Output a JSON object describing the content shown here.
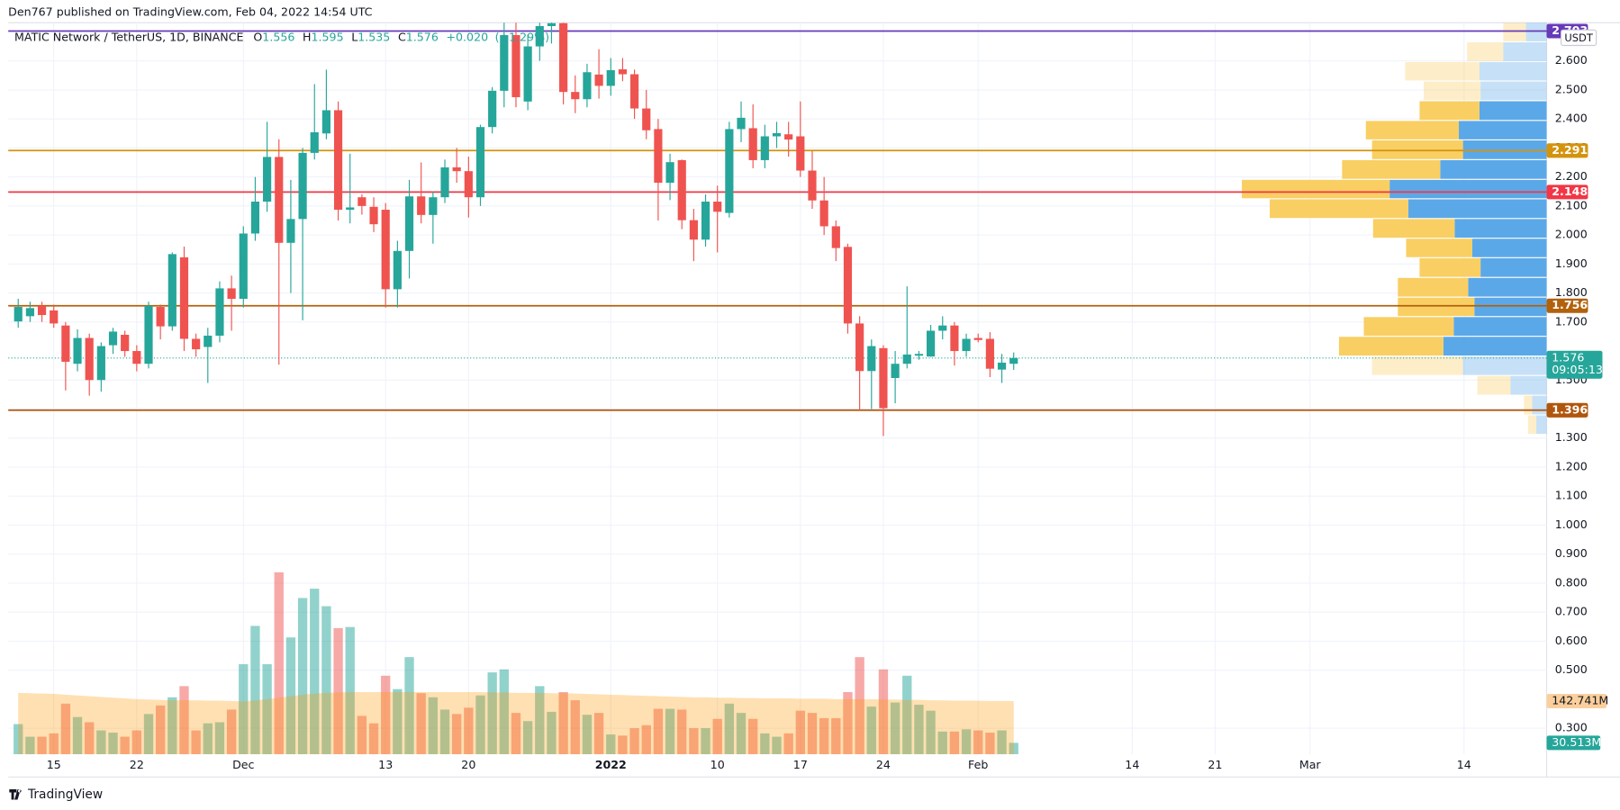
{
  "header": "Den767 published on TradingView.com, Feb 04, 2022 14:54 UTC",
  "footer": "TradingView",
  "chart_data": {
    "type": "candlestick",
    "title": "MATIC Network / TetherUS, 1D, BINANCE",
    "ohlc_labels": [
      "O",
      "H",
      "L",
      "C"
    ],
    "change": {
      "value": 0.02,
      "label": "+0.020"
    },
    "change_percent": {
      "value": 1.29,
      "label": "(+1.29%)"
    },
    "currency": "USDT",
    "countdown": "09:05:13",
    "up_color": "#26a69a",
    "down_color": "#ef5350",
    "open": [
      1.702,
      1.72,
      1.756,
      1.74,
      1.688,
      1.556,
      1.645,
      1.5,
      1.62,
      1.656,
      1.6,
      1.556,
      1.752,
      1.685,
      1.923,
      1.642,
      1.614,
      1.653,
      1.816,
      1.78,
      2.005,
      2.115,
      2.269,
      1.973,
      2.055,
      2.283,
      2.35,
      2.43,
      2.087,
      2.13,
      2.097,
      2.087,
      1.813,
      1.945,
      2.133,
      2.069,
      2.13,
      2.233,
      2.22,
      2.13,
      2.372,
      2.497,
      2.689,
      2.46,
      2.65,
      2.72,
      2.73,
      2.493,
      2.468,
      2.553,
      2.514,
      2.571,
      2.554,
      2.436,
      2.365,
      2.18,
      2.258,
      2.051,
      1.984,
      2.115,
      2.076,
      2.365,
      2.368,
      2.258,
      2.34,
      2.347,
      2.34,
      2.222,
      2.119,
      2.03,
      1.959,
      1.695,
      1.531,
      1.61,
      1.507,
      1.556,
      1.584,
      1.581,
      1.67,
      1.688,
      1.6,
      1.645,
      1.642,
      1.536,
      1.556
    ],
    "high": [
      1.78,
      1.77,
      1.77,
      1.76,
      1.7,
      1.675,
      1.66,
      1.63,
      1.68,
      1.67,
      1.62,
      1.77,
      1.76,
      1.94,
      1.96,
      1.66,
      1.68,
      1.84,
      1.86,
      2.03,
      2.2,
      2.39,
      2.33,
      2.19,
      2.3,
      2.52,
      2.57,
      2.46,
      2.28,
      2.14,
      2.13,
      2.11,
      1.98,
      2.19,
      2.25,
      2.15,
      2.26,
      2.3,
      2.27,
      2.38,
      2.51,
      2.74,
      2.74,
      2.69,
      2.74,
      2.74,
      2.74,
      2.55,
      2.59,
      2.64,
      2.61,
      2.61,
      2.57,
      2.5,
      2.4,
      2.28,
      2.26,
      2.09,
      2.14,
      2.17,
      2.39,
      2.46,
      2.45,
      2.38,
      2.39,
      2.39,
      2.46,
      2.29,
      2.2,
      2.05,
      1.97,
      1.72,
      1.64,
      1.62,
      1.6,
      1.823,
      1.6,
      1.69,
      1.72,
      1.7,
      1.66,
      1.66,
      1.665,
      1.59,
      1.595
    ],
    "low": [
      1.68,
      1.7,
      1.7,
      1.68,
      1.464,
      1.53,
      1.446,
      1.46,
      1.59,
      1.58,
      1.53,
      1.54,
      1.64,
      1.67,
      1.6,
      1.58,
      1.49,
      1.63,
      1.67,
      1.75,
      1.98,
      2.08,
      1.553,
      1.8,
      1.706,
      2.26,
      2.33,
      2.05,
      2.04,
      2.07,
      2.01,
      1.75,
      1.75,
      1.85,
      2.04,
      1.97,
      2.11,
      2.18,
      2.06,
      2.1,
      2.35,
      2.44,
      2.44,
      2.43,
      2.6,
      2.66,
      2.45,
      2.42,
      2.44,
      2.47,
      2.48,
      2.53,
      2.4,
      2.33,
      2.05,
      2.12,
      2.02,
      1.91,
      1.96,
      1.94,
      2.06,
      2.32,
      2.23,
      2.23,
      2.3,
      2.27,
      2.2,
      2.09,
      2.0,
      1.91,
      1.66,
      1.396,
      1.4,
      1.307,
      1.42,
      1.54,
      1.57,
      1.58,
      1.64,
      1.55,
      1.58,
      1.63,
      1.51,
      1.49,
      1.535
    ],
    "close": [
      1.752,
      1.748,
      1.724,
      1.695,
      1.563,
      1.645,
      1.5,
      1.617,
      1.667,
      1.6,
      1.556,
      1.756,
      1.685,
      1.934,
      1.642,
      1.606,
      1.653,
      1.816,
      1.78,
      2.005,
      2.115,
      2.269,
      1.973,
      2.055,
      2.283,
      2.354,
      2.43,
      2.087,
      2.095,
      2.1,
      2.037,
      1.813,
      1.945,
      2.133,
      2.069,
      2.13,
      2.233,
      2.22,
      2.13,
      2.372,
      2.497,
      2.689,
      2.475,
      2.65,
      2.72,
      2.73,
      2.493,
      2.468,
      2.561,
      2.514,
      2.568,
      2.554,
      2.436,
      2.361,
      2.18,
      2.251,
      2.051,
      1.984,
      2.115,
      2.08,
      2.365,
      2.404,
      2.258,
      2.34,
      2.351,
      2.329,
      2.222,
      2.119,
      2.03,
      1.955,
      1.695,
      1.531,
      1.617,
      1.403,
      1.556,
      1.588,
      1.59,
      1.67,
      1.688,
      1.6,
      1.642,
      1.638,
      1.539,
      1.56,
      1.576
    ],
    "xlim": [
      -0.84,
      128.97
    ],
    "xticks": [
      {
        "value": 3,
        "label": "15"
      },
      {
        "value": 10,
        "label": "22"
      },
      {
        "value": 19,
        "label": "Dec"
      },
      {
        "value": 31,
        "label": "13"
      },
      {
        "value": 38,
        "label": "20"
      },
      {
        "value": 50,
        "label": "2022"
      },
      {
        "value": 59,
        "label": "10"
      },
      {
        "value": 66,
        "label": "17"
      },
      {
        "value": 73,
        "label": "24"
      },
      {
        "value": 81,
        "label": "Feb"
      },
      {
        "value": 94,
        "label": "14"
      },
      {
        "value": 101,
        "label": "21"
      },
      {
        "value": 109,
        "label": "Mar"
      },
      {
        "value": 122,
        "label": "14"
      }
    ],
    "ylim": [
      0.2103,
      2.7316
    ],
    "yticks": [
      {
        "value": 0.3,
        "label": "0.300"
      },
      {
        "value": 0.5,
        "label": "0.500"
      },
      {
        "value": 0.6,
        "label": "0.600"
      },
      {
        "value": 0.7,
        "label": "0.700"
      },
      {
        "value": 0.8,
        "label": "0.800"
      },
      {
        "value": 0.9,
        "label": "0.900"
      },
      {
        "value": 1.0,
        "label": "1.000"
      },
      {
        "value": 1.1,
        "label": "1.100"
      },
      {
        "value": 1.2,
        "label": "1.200"
      },
      {
        "value": 1.3,
        "label": "1.300"
      },
      {
        "value": 1.4,
        "label": "1.400"
      },
      {
        "value": 1.5,
        "label": "1.500"
      },
      {
        "value": 1.7,
        "label": "1.700"
      },
      {
        "value": 1.8,
        "label": "1.800"
      },
      {
        "value": 1.9,
        "label": "1.900"
      },
      {
        "value": 2.0,
        "label": "2.000"
      },
      {
        "value": 2.1,
        "label": "2.100"
      },
      {
        "value": 2.2,
        "label": "2.200"
      },
      {
        "value": 2.3,
        "label": "2.300"
      },
      {
        "value": 2.4,
        "label": "2.400"
      },
      {
        "value": 2.5,
        "label": "2.500"
      },
      {
        "value": 2.6,
        "label": "2.600"
      }
    ],
    "grid": true,
    "volume": {
      "values": [
        81,
        47,
        47,
        56,
        136,
        100,
        86,
        64,
        58,
        47,
        64,
        108,
        131,
        153,
        183,
        64,
        83,
        86,
        120,
        242,
        345,
        242,
        489,
        314,
        420,
        445,
        398,
        339,
        342,
        103,
        83,
        211,
        175,
        261,
        164,
        153,
        120,
        108,
        125,
        158,
        220,
        228,
        111,
        89,
        183,
        114,
        167,
        145,
        106,
        111,
        53,
        50,
        70,
        78,
        122,
        122,
        120,
        70,
        70,
        95,
        136,
        111,
        95,
        56,
        47,
        56,
        117,
        111,
        97,
        97,
        167,
        261,
        128,
        228,
        139,
        211,
        133,
        117,
        61,
        61,
        67,
        64,
        58,
        64,
        30.513
      ],
      "ylim": [
        0,
        700
      ],
      "ma": [
        165,
        164,
        163,
        162,
        160,
        158,
        156,
        154,
        152,
        150,
        148,
        147,
        146,
        145,
        145,
        145,
        144,
        144,
        143,
        142,
        145,
        148,
        152,
        156,
        160,
        163,
        165,
        166,
        167,
        167,
        167,
        167,
        167,
        167,
        167,
        167,
        167,
        167,
        167,
        167,
        166,
        166,
        165,
        165,
        165,
        164,
        164,
        163,
        162,
        161,
        160,
        159,
        158,
        157,
        156,
        155,
        154,
        153,
        153,
        152,
        152,
        151,
        151,
        150,
        150,
        150,
        149,
        149,
        149,
        148,
        148,
        148,
        148,
        147,
        147,
        146,
        146,
        145,
        145,
        144,
        144,
        144,
        143,
        143,
        142.741
      ],
      "ma_color": "#ff9800",
      "ma_label": {
        "value": 142.741,
        "label": "142.741M"
      },
      "last_label": {
        "value": 30.513,
        "label": "30.513M"
      }
    },
    "levels": [
      {
        "value": 2.703,
        "label": "2.703",
        "color": "#673ab7"
      },
      {
        "value": 2.291,
        "label": "2.291",
        "color": "#d4930d"
      },
      {
        "value": 2.148,
        "label": "2.148",
        "color": "#f23645"
      },
      {
        "value": 1.756,
        "label": "1.756",
        "color": "#b2610c"
      },
      {
        "value": 1.396,
        "label": "1.396",
        "color": "#b0560c"
      }
    ],
    "volume_profile": {
      "edges": [
        2.732,
        2.664,
        2.596,
        2.529,
        2.461,
        2.393,
        2.326,
        2.258,
        2.19,
        2.123,
        2.055,
        1.987,
        1.92,
        1.852,
        1.784,
        1.717,
        1.649,
        1.581,
        1.514,
        1.446,
        1.378,
        1.311
      ],
      "up": [
        20,
        42,
        65,
        64,
        65,
        85,
        81,
        103,
        152,
        134,
        89,
        72,
        64,
        76,
        70,
        90,
        100,
        81,
        35,
        14,
        10
      ],
      "down": [
        22,
        35,
        72,
        55,
        58,
        90,
        88,
        95,
        143,
        134,
        79,
        64,
        59,
        68,
        74,
        87,
        101,
        88,
        32,
        8,
        8
      ],
      "value_area": [
        1.581,
        2.461
      ],
      "up_color": "#5ba8e8",
      "down_color": "#f9cf63"
    }
  }
}
